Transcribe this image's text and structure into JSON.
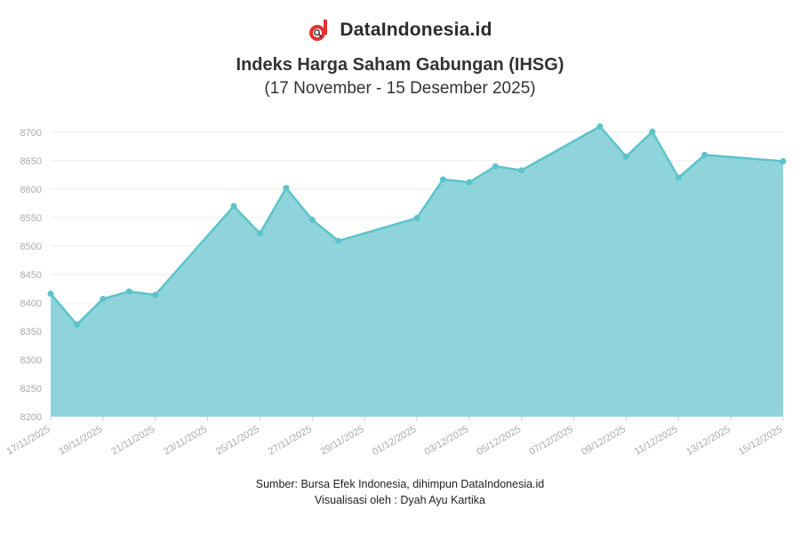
{
  "brand": {
    "name": "DataIndonesia.id",
    "logo_icon": "magnifier-d-logo",
    "accent": "#e5322d"
  },
  "header": {
    "title": "Indeks Harga Saham Gabungan (IHSG)",
    "subtitle": "(17 November - 15 Desember 2025)"
  },
  "footer": {
    "source": "Sumber: Bursa Efek Indonesia, dihimpun DataIndonesia.id",
    "visualization": "Visualisasi oleh : Dyah Ayu Kartika"
  },
  "chart_data": {
    "type": "area",
    "title": "Indeks Harga Saham Gabungan (IHSG)",
    "subtitle": "(17 November - 15 Desember 2025)",
    "xlabel": "",
    "ylabel": "",
    "x_axis": "date",
    "x_range": [
      "2025-11-17",
      "2025-12-15"
    ],
    "ylim": [
      8200,
      8720
    ],
    "y_ticks": [
      8200,
      8250,
      8300,
      8350,
      8400,
      8450,
      8500,
      8550,
      8600,
      8650,
      8700
    ],
    "x_tick_labels": [
      {
        "date": "2025-11-17",
        "label": "17/11/2025"
      },
      {
        "date": "2025-11-19",
        "label": "19/11/2025"
      },
      {
        "date": "2025-11-21",
        "label": "21/11/2025"
      },
      {
        "date": "2025-11-23",
        "label": "23/11/2025"
      },
      {
        "date": "2025-11-25",
        "label": "25/11/2025"
      },
      {
        "date": "2025-11-27",
        "label": "27/11/2025"
      },
      {
        "date": "2025-11-29",
        "label": "29/11/2025"
      },
      {
        "date": "2025-12-01",
        "label": "01/12/2025"
      },
      {
        "date": "2025-12-03",
        "label": "03/12/2025"
      },
      {
        "date": "2025-12-05",
        "label": "05/12/2025"
      },
      {
        "date": "2025-12-07",
        "label": "07/12/2025"
      },
      {
        "date": "2025-12-09",
        "label": "09/12/2025"
      },
      {
        "date": "2025-12-11",
        "label": "11/12/2025"
      },
      {
        "date": "2025-12-13",
        "label": "13/12/2025"
      },
      {
        "date": "2025-12-15",
        "label": "15/12/2025"
      }
    ],
    "grid": true,
    "legend": "none",
    "colors": {
      "line": "#5cc3cb",
      "fill": "#8fd4da",
      "grid": "#ececec",
      "tick_text": "#aaaaaa"
    },
    "series": [
      {
        "points": [
          {
            "x": "2025-11-17",
            "y": 8416
          },
          {
            "x": "2025-11-18",
            "y": 8362
          },
          {
            "x": "2025-11-19",
            "y": 8407
          },
          {
            "x": "2025-11-20",
            "y": 8420
          },
          {
            "x": "2025-11-21",
            "y": 8414
          },
          {
            "x": "2025-11-24",
            "y": 8570
          },
          {
            "x": "2025-11-25",
            "y": 8522
          },
          {
            "x": "2025-11-26",
            "y": 8602
          },
          {
            "x": "2025-11-27",
            "y": 8546
          },
          {
            "x": "2025-11-28",
            "y": 8509
          },
          {
            "x": "2025-12-01",
            "y": 8549
          },
          {
            "x": "2025-12-02",
            "y": 8617
          },
          {
            "x": "2025-12-03",
            "y": 8612
          },
          {
            "x": "2025-12-04",
            "y": 8640
          },
          {
            "x": "2025-12-05",
            "y": 8633
          },
          {
            "x": "2025-12-08",
            "y": 8710
          },
          {
            "x": "2025-12-09",
            "y": 8657
          },
          {
            "x": "2025-12-10",
            "y": 8701
          },
          {
            "x": "2025-12-11",
            "y": 8620
          },
          {
            "x": "2025-12-12",
            "y": 8660
          },
          {
            "x": "2025-12-15",
            "y": 8649
          }
        ]
      }
    ]
  }
}
